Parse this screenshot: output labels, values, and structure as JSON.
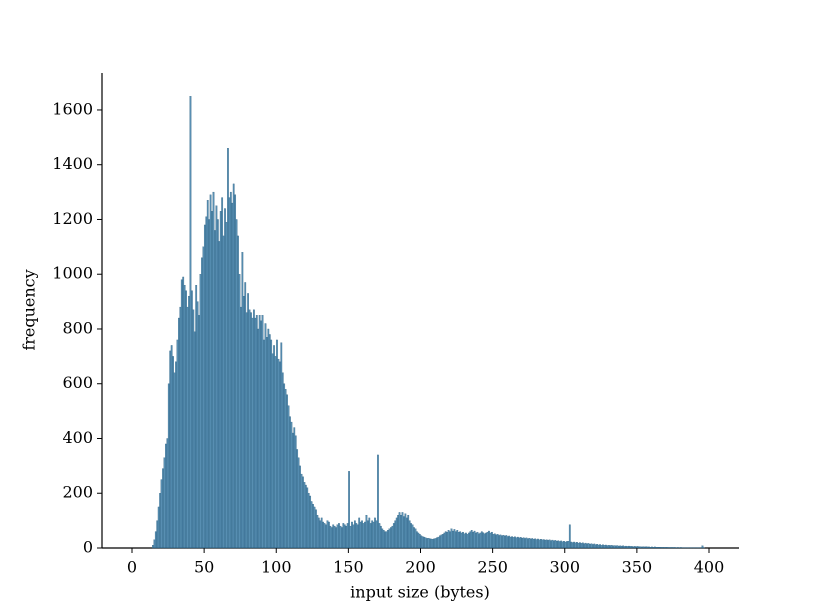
{
  "chart_data": {
    "type": "histogram",
    "xlabel": "input size (bytes)",
    "ylabel": "frequency",
    "color": "#3b7ba5",
    "xlim": [
      -20.8,
      420.8
    ],
    "ylim": [
      0,
      1735
    ],
    "xticks": [
      0,
      50,
      100,
      150,
      200,
      250,
      300,
      350,
      400
    ],
    "yticks": [
      0,
      200,
      400,
      600,
      800,
      1000,
      1200,
      1400,
      1600
    ],
    "bins": [
      14,
      15,
      16,
      17,
      18,
      19,
      20,
      21,
      22,
      23,
      24,
      25,
      26,
      27,
      28,
      29,
      30,
      31,
      32,
      33,
      34,
      35,
      36,
      37,
      38,
      39,
      40,
      41,
      42,
      43,
      44,
      45,
      46,
      47,
      48,
      49,
      50,
      51,
      52,
      53,
      54,
      55,
      56,
      57,
      58,
      59,
      60,
      61,
      62,
      63,
      64,
      65,
      66,
      67,
      68,
      69,
      70,
      71,
      72,
      73,
      74,
      75,
      76,
      77,
      78,
      79,
      80,
      81,
      82,
      83,
      84,
      85,
      86,
      87,
      88,
      89,
      90,
      91,
      92,
      93,
      94,
      95,
      96,
      97,
      98,
      99,
      100,
      101,
      102,
      103,
      104,
      105,
      106,
      107,
      108,
      109,
      110,
      111,
      112,
      113,
      114,
      115,
      116,
      117,
      118,
      119,
      120,
      121,
      122,
      123,
      124,
      125,
      126,
      127,
      128,
      129,
      130,
      131,
      132,
      133,
      134,
      135,
      136,
      137,
      138,
      139,
      140,
      141,
      142,
      143,
      144,
      145,
      146,
      147,
      148,
      149,
      150,
      151,
      152,
      153,
      154,
      155,
      156,
      157,
      158,
      159,
      160,
      161,
      162,
      163,
      164,
      165,
      166,
      167,
      168,
      169,
      170,
      171,
      172,
      173,
      174,
      175,
      176,
      177,
      178,
      179,
      180,
      181,
      182,
      183,
      184,
      185,
      186,
      187,
      188,
      189,
      190,
      191,
      192,
      193,
      194,
      195,
      196,
      197,
      198,
      199,
      200,
      201,
      202,
      203,
      204,
      205,
      206,
      207,
      208,
      209,
      210,
      211,
      212,
      213,
      214,
      215,
      216,
      217,
      218,
      219,
      220,
      221,
      222,
      223,
      224,
      225,
      226,
      227,
      228,
      229,
      230,
      231,
      232,
      233,
      234,
      235,
      236,
      237,
      238,
      239,
      240,
      241,
      242,
      243,
      244,
      245,
      246,
      247,
      248,
      249,
      250,
      251,
      252,
      253,
      254,
      255,
      256,
      257,
      258,
      259,
      260,
      261,
      262,
      263,
      264,
      265,
      266,
      267,
      268,
      269,
      270,
      271,
      272,
      273,
      274,
      275,
      276,
      277,
      278,
      279,
      280,
      281,
      282,
      283,
      284,
      285,
      286,
      287,
      288,
      289,
      290,
      291,
      292,
      293,
      294,
      295,
      296,
      297,
      298,
      299,
      300,
      301,
      302,
      303,
      304,
      305,
      306,
      307,
      308,
      309,
      310,
      311,
      312,
      313,
      314,
      315,
      316,
      317,
      318,
      319,
      320,
      321,
      322,
      323,
      324,
      325,
      326,
      327,
      328,
      329,
      330,
      331,
      332,
      333,
      334,
      335,
      336,
      337,
      338,
      339,
      340,
      341,
      342,
      343,
      344,
      345,
      346,
      347,
      348,
      349,
      350,
      351,
      352,
      353,
      354,
      355,
      356,
      357,
      358,
      359,
      360,
      361,
      362,
      363,
      364,
      365,
      366,
      367,
      368,
      369,
      370,
      371,
      372,
      373,
      374,
      375,
      376,
      377,
      378,
      379,
      380,
      381,
      382,
      383,
      384,
      385,
      386,
      387,
      388,
      389,
      390,
      391,
      392,
      393,
      394,
      395,
      396,
      397
    ],
    "values": [
      10,
      30,
      60,
      100,
      150,
      200,
      250,
      290,
      330,
      380,
      400,
      600,
      720,
      740,
      700,
      640,
      680,
      760,
      840,
      880,
      980,
      990,
      960,
      940,
      880,
      920,
      1650,
      940,
      870,
      790,
      960,
      900,
      850,
      1000,
      1060,
      1100,
      1180,
      1210,
      1270,
      1200,
      1290,
      1230,
      1300,
      1160,
      1250,
      1200,
      1120,
      1230,
      1280,
      1140,
      1240,
      1190,
      1460,
      1280,
      1300,
      1260,
      1330,
      1290,
      1200,
      1140,
      1000,
      880,
      1080,
      920,
      970,
      860,
      930,
      870,
      860,
      840,
      870,
      840,
      850,
      800,
      850,
      830,
      850,
      760,
      820,
      770,
      800,
      780,
      760,
      710,
      740,
      700,
      760,
      690,
      680,
      750,
      640,
      600,
      580,
      560,
      520,
      480,
      460,
      420,
      440,
      410,
      360,
      330,
      300,
      270,
      260,
      240,
      230,
      220,
      200,
      190,
      170,
      160,
      150,
      140,
      120,
      110,
      100,
      110,
      95,
      90,
      85,
      100,
      95,
      80,
      75,
      85,
      80,
      75,
      85,
      90,
      80,
      75,
      90,
      85,
      80,
      90,
      280,
      80,
      95,
      85,
      100,
      90,
      85,
      110,
      95,
      100,
      90,
      95,
      120,
      100,
      110,
      90,
      100,
      95,
      110,
      100,
      340,
      90,
      80,
      70,
      65,
      60,
      60,
      65,
      70,
      75,
      80,
      90,
      100,
      110,
      120,
      130,
      120,
      130,
      115,
      125,
      110,
      120,
      100,
      90,
      85,
      75,
      70,
      60,
      55,
      50,
      45,
      42,
      40,
      38,
      35,
      36,
      34,
      33,
      32,
      34,
      35,
      38,
      40,
      45,
      48,
      50,
      55,
      60,
      58,
      65,
      60,
      70,
      62,
      68,
      60,
      65,
      58,
      60,
      55,
      58,
      52,
      55,
      50,
      55,
      60,
      65,
      58,
      62,
      55,
      58,
      52,
      55,
      60,
      56,
      52,
      55,
      58,
      62,
      55,
      58,
      50,
      52,
      48,
      50,
      46,
      48,
      45,
      47,
      44,
      46,
      42,
      44,
      40,
      42,
      39,
      41,
      38,
      40,
      37,
      39,
      36,
      38,
      35,
      37,
      34,
      36,
      33,
      35,
      32,
      34,
      31,
      33,
      30,
      32,
      30,
      31,
      29,
      30,
      28,
      30,
      27,
      29,
      26,
      28,
      25,
      27,
      24,
      26,
      23,
      25,
      22,
      24,
      25,
      85,
      22,
      20,
      22,
      19,
      21,
      18,
      20,
      17,
      19,
      16,
      18,
      15,
      17,
      14,
      16,
      13,
      15,
      12,
      14,
      11,
      13,
      10,
      12,
      10,
      11,
      9,
      10,
      9,
      10,
      8,
      9,
      8,
      9,
      7,
      8,
      7,
      8,
      6,
      7,
      6,
      7,
      6,
      6,
      5,
      6,
      5,
      6,
      5,
      5,
      4,
      5,
      4,
      5,
      4,
      4,
      3,
      4,
      3,
      4,
      3,
      3,
      3,
      3,
      2,
      3,
      2,
      3,
      2,
      2,
      2,
      2,
      2,
      2,
      1,
      2,
      1,
      2,
      1,
      1,
      1,
      1,
      1,
      1,
      1,
      1,
      1,
      1,
      1,
      1,
      1,
      1,
      8,
      1
    ]
  }
}
